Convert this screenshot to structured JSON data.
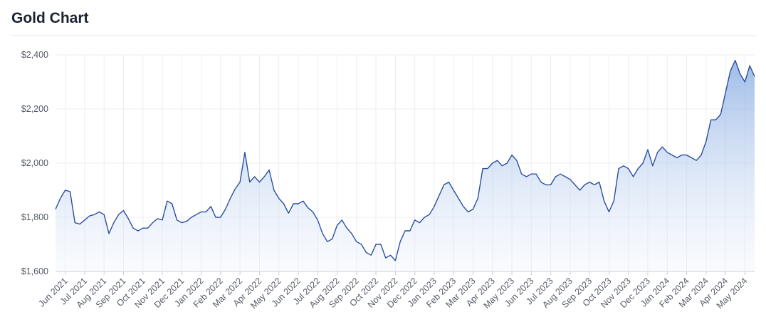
{
  "chart_data": {
    "type": "area",
    "title": "Gold Chart",
    "color": "#2b4f9e",
    "grid": true,
    "ylim": [
      1600,
      2400
    ],
    "yticks": [
      {
        "value": 1600,
        "label": "$1,600"
      },
      {
        "value": 1800,
        "label": "$1,800"
      },
      {
        "value": 2000,
        "label": "$2,000"
      },
      {
        "value": 2200,
        "label": "$2,200"
      },
      {
        "value": 2400,
        "label": "$2,400"
      }
    ],
    "categories": [
      null,
      null,
      "Jun 2021",
      null,
      null,
      null,
      "Jul 2021",
      null,
      null,
      null,
      "Aug 2021",
      null,
      null,
      null,
      "Sep 2021",
      null,
      null,
      null,
      "Oct 2021",
      null,
      null,
      null,
      "Nov 2021",
      null,
      null,
      null,
      "Dec 2021",
      null,
      null,
      null,
      "Jan 2022",
      null,
      null,
      null,
      "Feb 2022",
      null,
      null,
      null,
      "Mar 2022",
      null,
      null,
      null,
      "Apr 2022",
      null,
      null,
      null,
      "May 2022",
      null,
      null,
      null,
      "Jun 2022",
      null,
      null,
      null,
      "Jul 2022",
      null,
      null,
      null,
      "Aug 2022",
      null,
      null,
      null,
      "Sep 2022",
      null,
      null,
      null,
      "Oct 2022",
      null,
      null,
      null,
      "Nov 2022",
      null,
      null,
      null,
      "Dec 2022",
      null,
      null,
      null,
      "Jan 2023",
      null,
      null,
      null,
      "Feb 2023",
      null,
      null,
      null,
      "Mar 2023",
      null,
      null,
      null,
      "Apr 2023",
      null,
      null,
      null,
      "May 2023",
      null,
      null,
      null,
      "Jun 2023",
      null,
      null,
      null,
      "Jul 2023",
      null,
      null,
      null,
      "Aug 2023",
      null,
      null,
      null,
      "Sep 2023",
      null,
      null,
      null,
      "Oct 2023",
      null,
      null,
      null,
      "Nov 2023",
      null,
      null,
      null,
      "Dec 2023",
      null,
      null,
      null,
      "Jan 2024",
      null,
      null,
      null,
      "Feb 2024",
      null,
      null,
      null,
      "Mar 2024",
      null,
      null,
      null,
      "Apr 2024",
      null,
      null,
      null,
      "May 2024",
      null,
      null
    ],
    "values": [
      1830,
      1870,
      1900,
      1895,
      1780,
      1775,
      1790,
      1805,
      1810,
      1820,
      1810,
      1740,
      1780,
      1810,
      1825,
      1795,
      1760,
      1750,
      1760,
      1760,
      1780,
      1795,
      1790,
      1860,
      1850,
      1790,
      1780,
      1785,
      1800,
      1810,
      1820,
      1820,
      1840,
      1800,
      1800,
      1830,
      1870,
      1905,
      1930,
      2040,
      1930,
      1950,
      1930,
      1950,
      1975,
      1900,
      1870,
      1850,
      1815,
      1850,
      1850,
      1860,
      1835,
      1820,
      1790,
      1740,
      1710,
      1720,
      1770,
      1790,
      1760,
      1740,
      1710,
      1700,
      1670,
      1660,
      1700,
      1700,
      1650,
      1660,
      1640,
      1710,
      1750,
      1750,
      1790,
      1780,
      1800,
      1810,
      1840,
      1880,
      1920,
      1930,
      1900,
      1870,
      1840,
      1820,
      1830,
      1870,
      1980,
      1980,
      2000,
      2010,
      1990,
      2000,
      2030,
      2010,
      1960,
      1950,
      1960,
      1960,
      1930,
      1920,
      1920,
      1950,
      1960,
      1950,
      1940,
      1920,
      1900,
      1920,
      1930,
      1920,
      1930,
      1860,
      1820,
      1860,
      1980,
      1990,
      1980,
      1950,
      1980,
      2000,
      2050,
      1990,
      2040,
      2060,
      2040,
      2030,
      2020,
      2030,
      2030,
      2020,
      2010,
      2030,
      2080,
      2160,
      2160,
      2180,
      2260,
      2340,
      2380,
      2330,
      2300,
      2360,
      2320
    ]
  }
}
